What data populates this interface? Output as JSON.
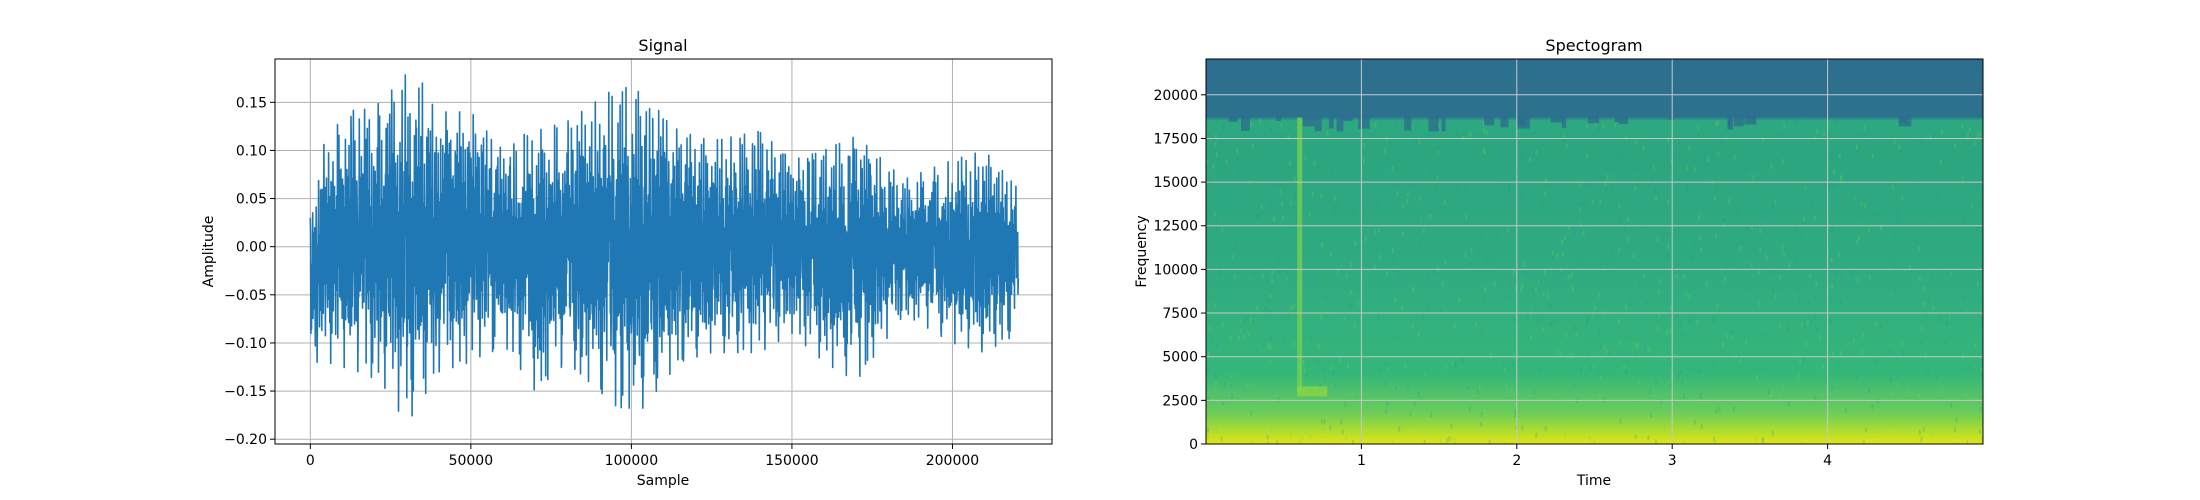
{
  "chart_data": [
    {
      "type": "line",
      "title": "Signal",
      "xlabel": "Sample",
      "ylabel": "Amplitude",
      "xlim": [
        -11000,
        231000
      ],
      "ylim": [
        -0.205,
        0.195
      ],
      "xticks": [
        0,
        50000,
        100000,
        150000,
        200000
      ],
      "xtick_labels": [
        "0",
        "50000",
        "100000",
        "150000",
        "200000"
      ],
      "yticks": [
        -0.2,
        -0.15,
        -0.1,
        -0.05,
        0.0,
        0.05,
        0.1,
        0.15
      ],
      "ytick_labels": [
        "−0.20",
        "−0.15",
        "−0.10",
        "−0.05",
        "0.00",
        "0.05",
        "0.10",
        "0.15"
      ],
      "grid": true,
      "color": "#1f77b4",
      "x_range": [
        0,
        220500
      ],
      "envelope": [
        {
          "x": 0,
          "top": 0.03,
          "bot": -0.12
        },
        {
          "x": 5000,
          "top": 0.12,
          "bot": -0.12
        },
        {
          "x": 15000,
          "top": 0.14,
          "bot": -0.13
        },
        {
          "x": 22000,
          "top": 0.15,
          "bot": -0.14
        },
        {
          "x": 30000,
          "top": 0.18,
          "bot": -0.185
        },
        {
          "x": 40000,
          "top": 0.14,
          "bot": -0.13
        },
        {
          "x": 50000,
          "top": 0.14,
          "bot": -0.12
        },
        {
          "x": 60000,
          "top": 0.1,
          "bot": -0.1
        },
        {
          "x": 70000,
          "top": 0.12,
          "bot": -0.15
        },
        {
          "x": 80000,
          "top": 0.13,
          "bot": -0.12
        },
        {
          "x": 95000,
          "top": 0.165,
          "bot": -0.165
        },
        {
          "x": 103000,
          "top": 0.15,
          "bot": -0.17
        },
        {
          "x": 115000,
          "top": 0.12,
          "bot": -0.12
        },
        {
          "x": 125000,
          "top": 0.11,
          "bot": -0.11
        },
        {
          "x": 140000,
          "top": 0.12,
          "bot": -0.11
        },
        {
          "x": 150000,
          "top": 0.09,
          "bot": -0.09
        },
        {
          "x": 160000,
          "top": 0.1,
          "bot": -0.12
        },
        {
          "x": 170000,
          "top": 0.115,
          "bot": -0.14
        },
        {
          "x": 185000,
          "top": 0.07,
          "bot": -0.07
        },
        {
          "x": 200000,
          "top": 0.09,
          "bot": -0.1
        },
        {
          "x": 210000,
          "top": 0.1,
          "bot": -0.11
        },
        {
          "x": 220500,
          "top": 0.06,
          "bot": -0.09
        }
      ]
    },
    {
      "type": "heatmap",
      "title": "Spectogram",
      "xlabel": "Time",
      "ylabel": "Frequency",
      "xlim": [
        0.0,
        5.0
      ],
      "ylim": [
        0,
        22050
      ],
      "xticks": [
        1,
        2,
        3,
        4
      ],
      "xtick_labels": [
        "1",
        "2",
        "3",
        "4"
      ],
      "yticks": [
        0,
        2500,
        5000,
        7500,
        10000,
        12500,
        15000,
        17500,
        20000
      ],
      "ytick_labels": [
        "0",
        "2500",
        "5000",
        "7500",
        "10000",
        "12500",
        "15000",
        "17500",
        "20000"
      ],
      "grid": true,
      "colormap": "viridis",
      "cutoff_frequency": 18700,
      "onset_time": 0.6
    }
  ]
}
